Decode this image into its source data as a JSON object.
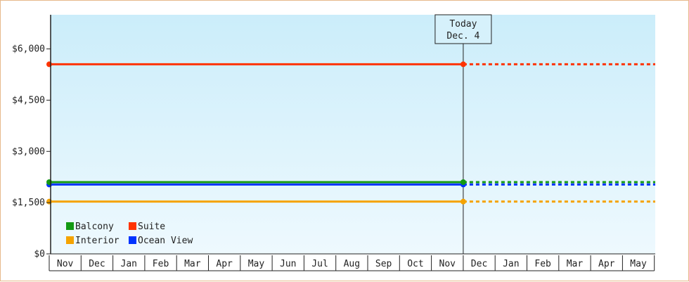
{
  "chart_data": {
    "type": "line",
    "title": "",
    "xlabel": "",
    "ylabel": "",
    "ylim": [
      0,
      7000
    ],
    "y_ticks": [
      {
        "value": 0,
        "label": "$0"
      },
      {
        "value": 1500,
        "label": "$1,500"
      },
      {
        "value": 3000,
        "label": "$3,000"
      },
      {
        "value": 4500,
        "label": "$4,500"
      },
      {
        "value": 6000,
        "label": "$6,000"
      }
    ],
    "months": [
      "Nov",
      "Dec",
      "Jan",
      "Feb",
      "Mar",
      "Apr",
      "May",
      "Jun",
      "Jul",
      "Aug",
      "Sep",
      "Oct",
      "Nov",
      "Dec",
      "Jan",
      "Feb",
      "Mar",
      "Apr",
      "May"
    ],
    "today_index": 13,
    "today_label_line1": "Today",
    "today_label_line2": "Dec. 4",
    "series": [
      {
        "name": "Balcony",
        "color": "#139913",
        "values_start": 2100,
        "values_today": 2100
      },
      {
        "name": "Suite",
        "color": "#ff3300",
        "values_start": 5550,
        "values_today": 5550
      },
      {
        "name": "Interior",
        "color": "#f5a300",
        "values_start": 1530,
        "values_today": 1530
      },
      {
        "name": "Ocean View",
        "color": "#0033ff",
        "values_start": 2030,
        "values_today": 2030
      }
    ],
    "grid": false,
    "legend_position": "bottom-left",
    "colors": {
      "plot_bg_top": "#cbedfa",
      "plot_bg_bottom": "#eef9fe",
      "axis": "#222222",
      "frame_border": "#e7b98a"
    }
  }
}
